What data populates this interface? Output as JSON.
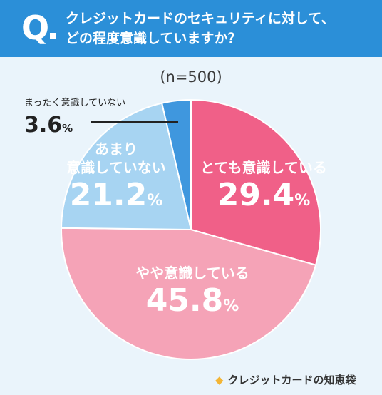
{
  "header": {
    "q_mark": "Q",
    "question": "クレジットカードのセキュリティに対して、\nどの程度意識していますか？"
  },
  "sample_label": "(n=500)",
  "chart_data": {
    "type": "pie",
    "title": "クレジットカードのセキュリティに対して、どの程度意識していますか？",
    "sample": "(n=500)",
    "unit": "%",
    "slices": [
      {
        "label": "とても意識している",
        "value": 29.4,
        "color": "#f06088"
      },
      {
        "label": "やや意識している",
        "value": 45.8,
        "color": "#f5a3b7"
      },
      {
        "label": "あまり意識していない",
        "value": 21.2,
        "color": "#a7d4f2"
      },
      {
        "label": "まったく意識していない",
        "value": 3.6,
        "color": "#3f97de"
      }
    ],
    "display": {
      "s0_text": "とても意識している",
      "s0_pct": "29.4",
      "s1_text": "やや意識している",
      "s1_pct": "45.8",
      "s2_line1": "あまり",
      "s2_line2": "意識していない",
      "s2_pct": "21.2",
      "s3_text": "まったく意識していない",
      "s3_pct": "3.6",
      "pct_unit": "%"
    }
  },
  "brand": {
    "icon": "◆",
    "name": "クレジットカードの知恵袋"
  }
}
